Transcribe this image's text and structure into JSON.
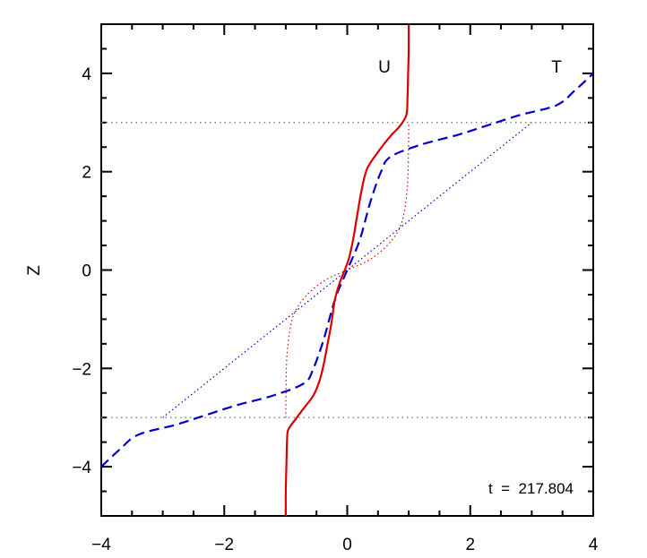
{
  "chart_data": {
    "type": "line",
    "title": "",
    "xlabel": "",
    "ylabel": "Z",
    "xlim": [
      -4,
      4
    ],
    "ylim": [
      -5,
      5
    ],
    "xticks": [
      -4,
      -2,
      0,
      2,
      4
    ],
    "yticks": [
      -4,
      -2,
      0,
      2,
      4
    ],
    "xtick_labels": [
      "−4",
      "−2",
      "0",
      "2",
      "4"
    ],
    "ytick_labels": [
      "−4",
      "−2",
      "0",
      "2",
      "4"
    ],
    "grid": false,
    "reference_lines": [
      {
        "name": "upper-boundary",
        "z": 3,
        "color": "#888888",
        "style": "dotted"
      },
      {
        "name": "lower-boundary",
        "z": -3,
        "color": "#888888",
        "style": "dotted"
      }
    ],
    "annotations": {
      "u_label": "U",
      "t_label": "T",
      "time_label": "t  =  217.804"
    },
    "series": [
      {
        "key": "u",
        "color": "#dd0000",
        "style": "solid",
        "points": [
          [
            -1.0,
            -5
          ],
          [
            -1.0,
            -4.5
          ],
          [
            -0.99,
            -4.0
          ],
          [
            -0.98,
            -3.5
          ],
          [
            -0.96,
            -3.25
          ],
          [
            -0.85,
            -3.05
          ],
          [
            -0.7,
            -2.8
          ],
          [
            -0.55,
            -2.55
          ],
          [
            -0.45,
            -2.25
          ],
          [
            -0.38,
            -1.9
          ],
          [
            -0.32,
            -1.5
          ],
          [
            -0.26,
            -1.1
          ],
          [
            -0.2,
            -0.6
          ],
          [
            -0.12,
            -0.25
          ],
          [
            -0.04,
            0
          ],
          [
            0.03,
            0.25
          ],
          [
            0.1,
            0.65
          ],
          [
            0.16,
            1.1
          ],
          [
            0.23,
            1.6
          ],
          [
            0.32,
            2.05
          ],
          [
            0.5,
            2.4
          ],
          [
            0.7,
            2.72
          ],
          [
            0.85,
            2.92
          ],
          [
            0.96,
            3.15
          ],
          [
            0.98,
            3.5
          ],
          [
            0.99,
            4.0
          ],
          [
            1.0,
            4.5
          ],
          [
            1.0,
            5
          ]
        ]
      },
      {
        "key": "u-initial",
        "color": "#dd0000",
        "style": "dotted",
        "points": [
          [
            -1.0,
            -3.0
          ],
          [
            -0.99,
            -2.0
          ],
          [
            -0.97,
            -1.6
          ],
          [
            -0.93,
            -1.2
          ],
          [
            -0.85,
            -0.85
          ],
          [
            -0.65,
            -0.5
          ],
          [
            -0.35,
            -0.2
          ],
          [
            0,
            0
          ],
          [
            0.35,
            0.2
          ],
          [
            0.65,
            0.5
          ],
          [
            0.85,
            0.85
          ],
          [
            0.93,
            1.2
          ],
          [
            0.97,
            1.6
          ],
          [
            0.99,
            2.0
          ],
          [
            1.0,
            3.0
          ]
        ]
      },
      {
        "key": "t",
        "color": "#0000cc",
        "style": "dashed",
        "points": [
          [
            -4.0,
            -4.0
          ],
          [
            -3.7,
            -3.65
          ],
          [
            -3.4,
            -3.35
          ],
          [
            -2.8,
            -3.15
          ],
          [
            -2.3,
            -2.95
          ],
          [
            -1.8,
            -2.75
          ],
          [
            -1.2,
            -2.55
          ],
          [
            -0.7,
            -2.3
          ],
          [
            -0.55,
            -2.0
          ],
          [
            -0.38,
            -1.4
          ],
          [
            -0.2,
            -0.6
          ],
          [
            0,
            0
          ],
          [
            0.2,
            0.6
          ],
          [
            0.38,
            1.4
          ],
          [
            0.55,
            2.0
          ],
          [
            0.7,
            2.3
          ],
          [
            1.2,
            2.55
          ],
          [
            1.8,
            2.75
          ],
          [
            2.3,
            2.95
          ],
          [
            2.8,
            3.15
          ],
          [
            3.4,
            3.35
          ],
          [
            3.7,
            3.65
          ],
          [
            4.0,
            4.0
          ]
        ]
      },
      {
        "key": "t-initial",
        "color": "#0000cc",
        "style": "dotted",
        "points": [
          [
            -3.0,
            -3.0
          ],
          [
            3.0,
            3.0
          ]
        ]
      }
    ]
  }
}
